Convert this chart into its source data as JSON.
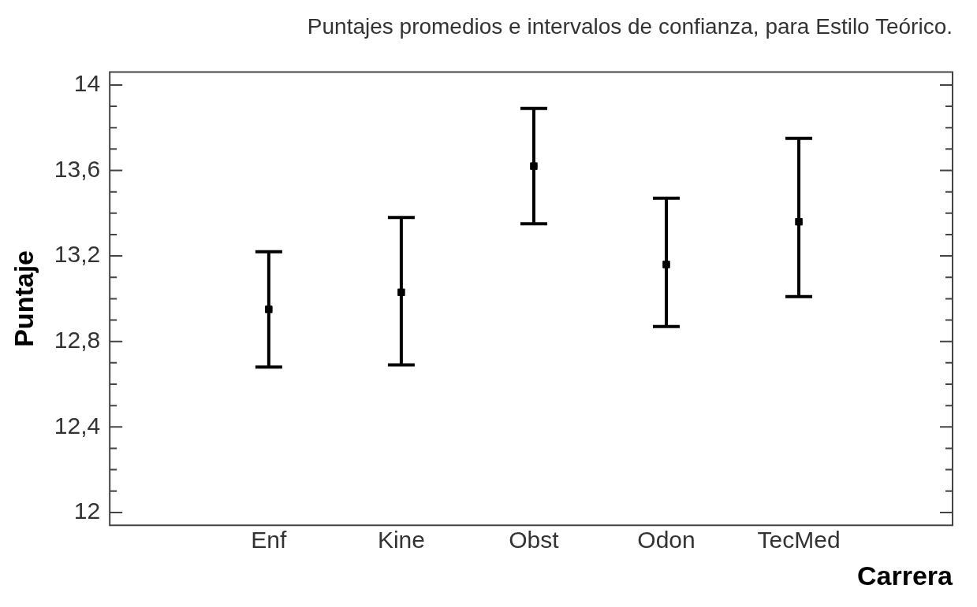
{
  "chart_data": {
    "type": "scatter",
    "title": "Puntajes promedios e intervalos de confianza, para Estilo Teórico.",
    "xlabel": "Carrera",
    "ylabel": "Puntaje",
    "categories": [
      "Enf",
      "Kine",
      "Obst",
      "Odon",
      "TecMed"
    ],
    "series": [
      {
        "color": "#000000",
        "values": [
          12.95,
          13.03,
          13.62,
          13.16,
          13.36
        ],
        "errors": [
          [
            12.68,
            13.22
          ],
          [
            12.69,
            13.38
          ],
          [
            13.35,
            13.89
          ],
          [
            12.87,
            13.47
          ],
          [
            13.01,
            13.75
          ]
        ]
      }
    ],
    "marker": "square",
    "grid": false,
    "legend": false,
    "ylim": [
      11.94,
      14.06
    ],
    "yticks": [
      12,
      {
        "value": 12.1,
        "label": null
      },
      {
        "value": 12.2,
        "label": null
      },
      {
        "value": 12.3,
        "label": null
      },
      {
        "value": 12.4,
        "label": "12,4"
      },
      {
        "value": 12.5,
        "label": null
      },
      {
        "value": 12.6,
        "label": null
      },
      {
        "value": 12.7,
        "label": null
      },
      {
        "value": 12.8,
        "label": "12,8"
      },
      {
        "value": 12.9,
        "label": null
      },
      {
        "value": 13,
        "label": null
      },
      {
        "value": 13.1,
        "label": null
      },
      {
        "value": 13.2,
        "label": "13,2"
      },
      {
        "value": 13.3,
        "label": null
      },
      {
        "value": 13.4,
        "label": null
      },
      {
        "value": 13.5,
        "label": null
      },
      {
        "value": 13.6,
        "label": "13,6"
      },
      {
        "value": 13.7,
        "label": null
      },
      {
        "value": 13.8,
        "label": null
      },
      {
        "value": 13.9,
        "label": null
      },
      14
    ]
  }
}
